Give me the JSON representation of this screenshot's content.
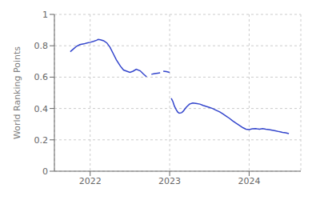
{
  "chart_data": {
    "type": "line",
    "ylabel": "World Ranking Points",
    "color": "#3345cc",
    "grid": true,
    "xlim": [
      2021.55,
      2024.65
    ],
    "xticks": [
      2022,
      2023,
      2024
    ],
    "ylim": [
      0,
      1
    ],
    "yticks": [
      0,
      0.2,
      0.4,
      0.6,
      0.8,
      1.0
    ],
    "series": [
      {
        "x": [
          2021.75,
          2021.79,
          2021.83,
          2021.87,
          2021.92,
          2021.96,
          2022.0,
          2022.04,
          2022.08,
          2022.1,
          2022.13,
          2022.17,
          2022.21,
          2022.25,
          2022.29,
          2022.33,
          2022.38,
          2022.42,
          2022.46,
          2022.5,
          2022.54,
          2022.58,
          2022.63,
          2022.67,
          2022.71
        ],
        "values": [
          0.762,
          0.78,
          0.797,
          0.807,
          0.812,
          0.818,
          0.822,
          0.828,
          0.835,
          0.84,
          0.838,
          0.832,
          0.818,
          0.79,
          0.75,
          0.71,
          0.67,
          0.645,
          0.638,
          0.63,
          0.638,
          0.65,
          0.64,
          0.62,
          0.602
        ]
      },
      {
        "x": [
          2022.77,
          2022.81,
          2022.85,
          2022.88
        ],
        "values": [
          0.618,
          0.622,
          0.625,
          0.627
        ]
      },
      {
        "x": [
          2022.92,
          2022.96,
          2023.0
        ],
        "values": [
          0.638,
          0.635,
          0.63
        ]
      },
      {
        "x": [
          2023.02,
          2023.04,
          2023.06,
          2023.08,
          2023.1,
          2023.12,
          2023.15,
          2023.17,
          2023.19,
          2023.21,
          2023.23,
          2023.25,
          2023.29,
          2023.33,
          2023.38,
          2023.42,
          2023.46,
          2023.5,
          2023.54,
          2023.58,
          2023.63,
          2023.67,
          2023.71,
          2023.75,
          2023.79,
          2023.83,
          2023.88,
          2023.92,
          2023.96,
          2024.0,
          2024.04,
          2024.08,
          2024.1,
          2024.13,
          2024.17,
          2024.21,
          2024.25,
          2024.29,
          2024.33,
          2024.38,
          2024.42,
          2024.46,
          2024.5
        ],
        "values": [
          0.465,
          0.445,
          0.415,
          0.395,
          0.378,
          0.37,
          0.373,
          0.382,
          0.395,
          0.408,
          0.418,
          0.428,
          0.435,
          0.432,
          0.428,
          0.42,
          0.413,
          0.407,
          0.4,
          0.39,
          0.378,
          0.365,
          0.352,
          0.338,
          0.322,
          0.308,
          0.292,
          0.278,
          0.268,
          0.265,
          0.27,
          0.272,
          0.27,
          0.268,
          0.272,
          0.268,
          0.265,
          0.262,
          0.258,
          0.252,
          0.248,
          0.245,
          0.24
        ]
      }
    ]
  }
}
